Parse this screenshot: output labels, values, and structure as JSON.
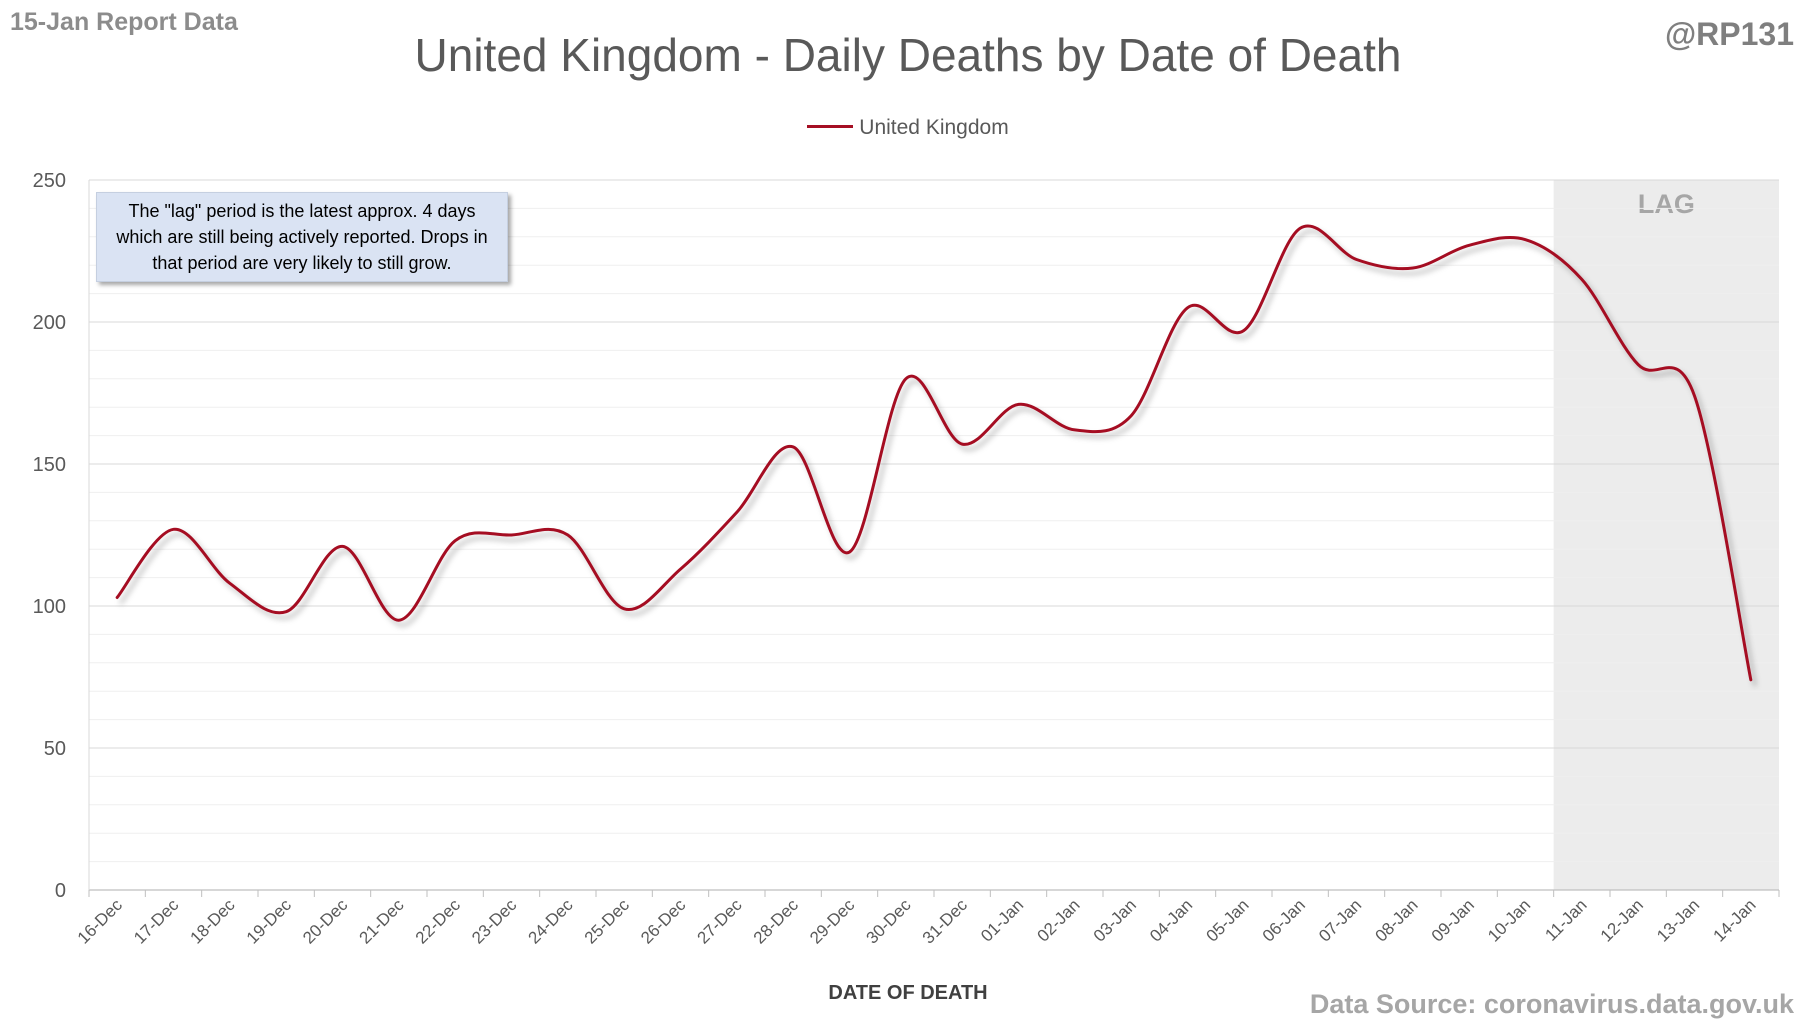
{
  "header": {
    "report_label": "15-Jan Report Data",
    "handle": "@RP131",
    "source": "Data Source: coronavirus.data.gov.uk"
  },
  "note": "The \"lag\" period is the latest approx. 4 days which are still being actively reported. Drops in that period are very likely to still grow.",
  "colors": {
    "series": "#a50f23",
    "lag_shade": "#ececec",
    "grid_major": "#d9d9d9",
    "grid_minor": "#efefef",
    "note_bg": "#dae3f3"
  },
  "chart_data": {
    "type": "line",
    "title": "United Kingdom - Daily Deaths by Date of Death",
    "xlabel": "DATE OF DEATH",
    "ylabel": "",
    "ylim": [
      0,
      250
    ],
    "yticks": [
      0,
      50,
      100,
      150,
      200,
      250
    ],
    "grid": true,
    "legend": "top-center",
    "categories": [
      "16-Dec",
      "17-Dec",
      "18-Dec",
      "19-Dec",
      "20-Dec",
      "21-Dec",
      "22-Dec",
      "23-Dec",
      "24-Dec",
      "25-Dec",
      "26-Dec",
      "27-Dec",
      "28-Dec",
      "29-Dec",
      "30-Dec",
      "31-Dec",
      "01-Jan",
      "02-Jan",
      "03-Jan",
      "04-Jan",
      "05-Jan",
      "06-Jan",
      "07-Jan",
      "08-Jan",
      "09-Jan",
      "10-Jan",
      "11-Jan",
      "12-Jan",
      "13-Jan",
      "14-Jan"
    ],
    "series": [
      {
        "name": "United Kingdom",
        "values": [
          103,
          127,
          108,
          98,
          121,
          95,
          123,
          125,
          125,
          99,
          113,
          133,
          156,
          119,
          180,
          157,
          171,
          162,
          167,
          205,
          197,
          233,
          222,
          219,
          227,
          229,
          215,
          185,
          174,
          74
        ]
      }
    ],
    "shaded_region": {
      "label": "LAG",
      "start": "11-Jan",
      "end": "14-Jan"
    }
  }
}
